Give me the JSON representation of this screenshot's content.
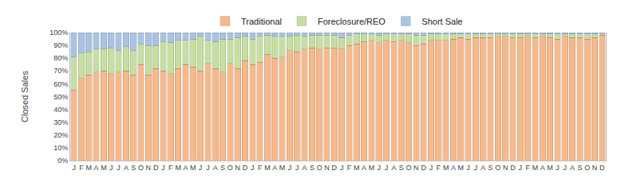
{
  "chart_data": {
    "type": "bar",
    "stacked": true,
    "y_label": "Closed Sales",
    "legend": "top",
    "grid": false,
    "categories": [
      "J",
      "F",
      "M",
      "A",
      "M",
      "J",
      "J",
      "A",
      "S",
      "O",
      "N",
      "D",
      "J",
      "F",
      "M",
      "A",
      "M",
      "J",
      "J",
      "A",
      "S",
      "O",
      "N",
      "D",
      "J",
      "F",
      "M",
      "A",
      "M",
      "J",
      "J",
      "A",
      "S",
      "O",
      "N",
      "D",
      "J",
      "F",
      "M",
      "A",
      "M",
      "J",
      "J",
      "A",
      "S",
      "O",
      "N",
      "D",
      "J",
      "F",
      "M",
      "A",
      "M",
      "J",
      "J",
      "A",
      "S",
      "O",
      "N",
      "D",
      "J",
      "F",
      "M",
      "A",
      "M",
      "J",
      "J",
      "A",
      "S",
      "O",
      "N",
      "D"
    ],
    "ylim": [
      0,
      100
    ],
    "yticks": [
      {
        "value": 0,
        "label": "0%"
      },
      {
        "value": 10,
        "label": "10%"
      },
      {
        "value": 20,
        "label": "20%"
      },
      {
        "value": 30,
        "label": "30%"
      },
      {
        "value": 40,
        "label": "40%"
      },
      {
        "value": 50,
        "label": "50%"
      },
      {
        "value": 60,
        "label": "60%"
      },
      {
        "value": 70,
        "label": "70%"
      },
      {
        "value": 80,
        "label": "80%"
      },
      {
        "value": 90,
        "label": "90%"
      },
      {
        "value": 100,
        "label": "100%"
      }
    ],
    "series": [
      {
        "name": "Traditional",
        "color": "#f6b98c",
        "values": [
          55,
          64,
          67,
          69,
          70,
          68,
          69,
          70,
          67,
          75,
          67,
          72,
          70,
          68,
          72,
          75,
          73,
          70,
          76,
          72,
          69,
          76,
          72,
          78,
          75,
          77,
          83,
          80,
          81,
          86,
          85,
          87,
          88,
          87,
          88,
          88,
          87,
          90,
          91,
          93,
          94,
          92,
          94,
          93,
          94,
          92,
          90,
          91,
          94,
          94,
          94,
          95,
          96,
          95,
          96,
          96,
          96,
          97,
          97,
          96,
          96,
          97,
          96,
          97,
          96,
          95,
          97,
          96,
          96,
          95,
          96,
          98
        ]
      },
      {
        "name": "Foreclosure/REO",
        "color": "#c6dea2",
        "values": [
          26,
          20,
          18,
          18,
          17,
          20,
          17,
          19,
          19,
          16,
          23,
          18,
          23,
          24,
          22,
          19,
          22,
          27,
          18,
          21,
          26,
          19,
          24,
          19,
          20,
          20,
          15,
          17,
          16,
          11,
          13,
          10,
          10,
          11,
          10,
          10,
          9,
          8,
          8,
          6,
          5,
          6,
          5,
          6,
          5,
          7,
          8,
          7,
          5,
          5,
          5,
          4,
          3,
          4,
          3,
          3,
          3,
          2,
          2,
          3,
          3,
          2,
          3,
          2,
          3,
          4,
          2,
          3,
          3,
          4,
          3,
          1
        ]
      },
      {
        "name": "Short Sale",
        "color": "#a9c3e3",
        "values": [
          19,
          16,
          15,
          13,
          13,
          12,
          14,
          11,
          14,
          9,
          10,
          10,
          7,
          8,
          6,
          6,
          5,
          3,
          6,
          7,
          5,
          5,
          4,
          3,
          5,
          3,
          2,
          3,
          3,
          3,
          2,
          3,
          2,
          2,
          2,
          2,
          4,
          2,
          1,
          1,
          1,
          2,
          1,
          1,
          1,
          1,
          2,
          2,
          1,
          1,
          1,
          1,
          1,
          1,
          1,
          1,
          1,
          1,
          1,
          1,
          1,
          1,
          1,
          1,
          1,
          1,
          1,
          1,
          1,
          1,
          1,
          1
        ]
      }
    ]
  }
}
